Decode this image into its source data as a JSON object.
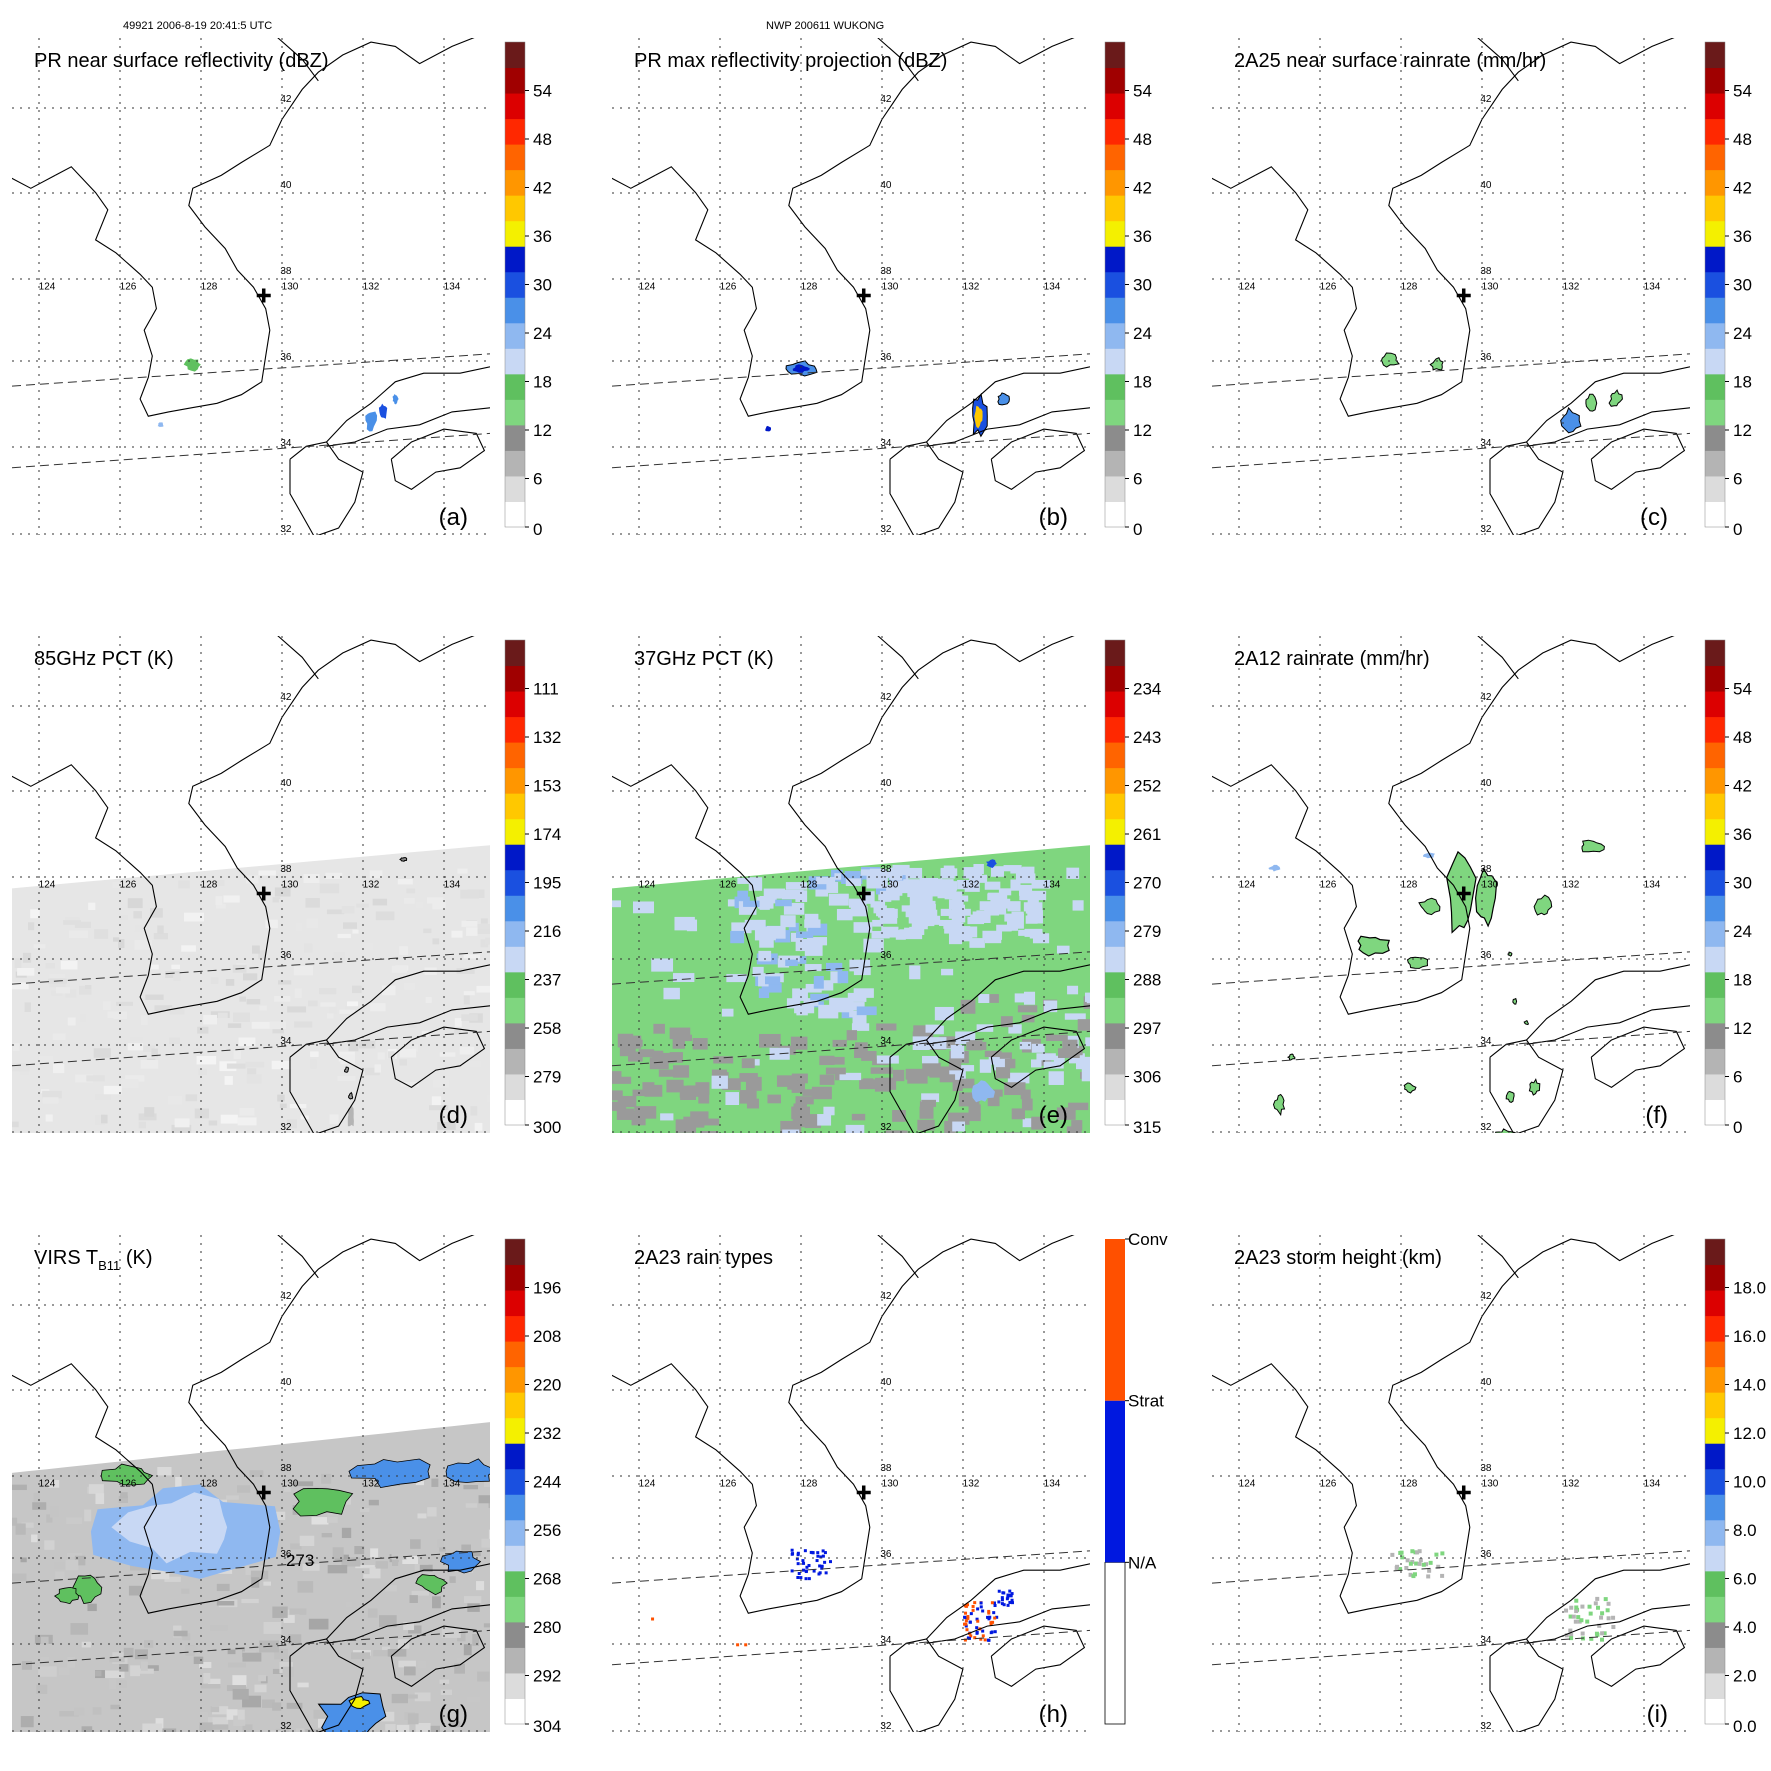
{
  "header": {
    "left": "49921 2006-8-19 20:41:5 UTC",
    "center": "NWP 200611 WUKONG"
  },
  "grid": {
    "lon_labels": [
      "124",
      "126",
      "128",
      "130",
      "132",
      "134"
    ],
    "lat_labels": [
      "42",
      "40",
      "38",
      "36",
      "34",
      "32"
    ]
  },
  "panels": [
    {
      "id": "a",
      "title": "PR near surface reflectivity (dBZ)",
      "label": "(a)",
      "colorbar": [
        "0",
        "6",
        "12",
        "18",
        "24",
        "30",
        "36",
        "42",
        "48",
        "54"
      ],
      "field": "reflect_small"
    },
    {
      "id": "b",
      "title": "PR max reflectivity projection (dBZ)",
      "label": "(b)",
      "colorbar": [
        "0",
        "6",
        "12",
        "18",
        "24",
        "30",
        "36",
        "42",
        "48",
        "54"
      ],
      "field": "reflect_max"
    },
    {
      "id": "c",
      "title": "2A25 near surface rainrate (mm/hr)",
      "label": "(c)",
      "colorbar": [
        "0",
        "6",
        "12",
        "18",
        "24",
        "30",
        "36",
        "42",
        "48",
        "54"
      ],
      "field": "rain_small"
    },
    {
      "id": "d",
      "title": "85GHz PCT (K)",
      "label": "(d)",
      "colorbar": [
        "300",
        "279",
        "258",
        "237",
        "216",
        "195",
        "174",
        "153",
        "132",
        "111"
      ],
      "field": "pct85"
    },
    {
      "id": "e",
      "title": "37GHz PCT (K)",
      "label": "(e)",
      "colorbar": [
        "315",
        "306",
        "297",
        "288",
        "279",
        "270",
        "261",
        "252",
        "243",
        "234"
      ],
      "field": "pct37"
    },
    {
      "id": "f",
      "title": "2A12 rainrate (mm/hr)",
      "label": "(f)",
      "colorbar": [
        "0",
        "6",
        "12",
        "18",
        "24",
        "30",
        "36",
        "42",
        "48",
        "54"
      ],
      "field": "rain2a12"
    },
    {
      "id": "g",
      "title": "VIRS T",
      "title_sub": "B11",
      "title_tail": " (K)",
      "label": "(g)",
      "colorbar": [
        "304",
        "292",
        "280",
        "268",
        "256",
        "244",
        "232",
        "220",
        "208",
        "196"
      ],
      "field": "virs",
      "annotation": "273"
    },
    {
      "id": "h",
      "title": "2A23 rain types",
      "label": "(h)",
      "colorbar_cat": [
        "N/A",
        "Strat",
        "Conv"
      ],
      "field": "raintype"
    },
    {
      "id": "i",
      "title": "2A23 storm height (km)",
      "label": "(i)",
      "colorbar": [
        "0.0",
        "2.0",
        "4.0",
        "6.0",
        "8.0",
        "10.0",
        "12.0",
        "14.0",
        "16.0",
        "18.0"
      ],
      "field": "height"
    }
  ],
  "colors": {
    "scale": [
      "#ffffff",
      "#dcdcdc",
      "#b4b4b4",
      "#8c8c8c",
      "#7fd67f",
      "#5fc05f",
      "#c8d8f4",
      "#8fb8f0",
      "#4a90e8",
      "#1a50e0",
      "#0018c8",
      "#f4f000",
      "#ffc800",
      "#ff9600",
      "#ff6400",
      "#ff2800",
      "#dc0000",
      "#a00000",
      "#6a1a1a"
    ],
    "conv": "#ff5000",
    "strat": "#0018e0"
  }
}
